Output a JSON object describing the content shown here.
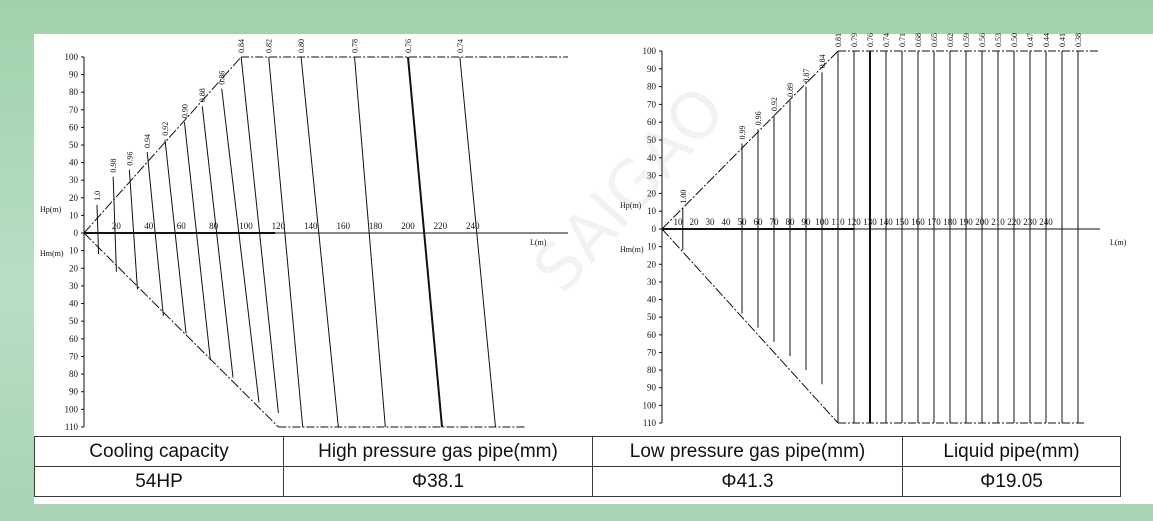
{
  "chart_data": [
    {
      "type": "line",
      "left_axis_labels": [
        "Hp(m)",
        "Hm(m)"
      ],
      "xlabel": "L(m)",
      "hp_ticks": [
        0,
        10,
        20,
        30,
        40,
        50,
        60,
        70,
        80,
        90,
        100
      ],
      "hm_ticks": [
        10,
        20,
        30,
        40,
        50,
        60,
        70,
        80,
        90,
        100,
        110
      ],
      "x_ticks": [
        20,
        40,
        60,
        80,
        100,
        120,
        140,
        160,
        180,
        200,
        220,
        240
      ],
      "x_range": [
        0,
        272
      ],
      "series": [
        {
          "label": "1.0",
          "top_L": 8,
          "top_Hp": 16,
          "bottom_L": 9,
          "bottom_Hm": 12
        },
        {
          "label": "0.98",
          "top_L": 18,
          "top_Hp": 32,
          "bottom_L": 20,
          "bottom_Hm": 22
        },
        {
          "label": "0.96",
          "top_L": 28,
          "top_Hp": 36,
          "bottom_L": 33,
          "bottom_Hm": 32
        },
        {
          "label": "0.94",
          "top_L": 39,
          "top_Hp": 46,
          "bottom_L": 49,
          "bottom_Hm": 47
        },
        {
          "label": "0.92",
          "top_L": 50,
          "top_Hp": 53,
          "bottom_L": 63,
          "bottom_Hm": 57
        },
        {
          "label": "0.90",
          "top_L": 62,
          "top_Hp": 63,
          "bottom_L": 78,
          "bottom_Hm": 72
        },
        {
          "label": "0.88",
          "top_L": 73,
          "top_Hp": 72,
          "bottom_L": 92,
          "bottom_Hm": 82
        },
        {
          "label": "0.86",
          "top_L": 85,
          "top_Hp": 82,
          "bottom_L": 108,
          "bottom_Hm": 96
        },
        {
          "label": "0.84",
          "top_L": 97,
          "top_Hp": 100,
          "bottom_L": 120,
          "bottom_Hm": 102
        },
        {
          "label": "0.82",
          "top_L": 114,
          "top_Hp": 100,
          "bottom_L": 135,
          "bottom_Hm": 110
        },
        {
          "label": "0.80",
          "top_L": 134,
          "top_Hp": 100,
          "bottom_L": 157,
          "bottom_Hm": 110
        },
        {
          "label": "0.78",
          "top_L": 167,
          "top_Hp": 100,
          "bottom_L": 186,
          "bottom_Hm": 110
        },
        {
          "label": "0.76",
          "top_L": 200,
          "top_Hp": 100,
          "bottom_L": 221,
          "bottom_Hm": 110
        },
        {
          "label": "0.74",
          "top_L": 232,
          "top_Hp": 100,
          "bottom_L": 254,
          "bottom_Hm": 110
        }
      ]
    },
    {
      "type": "line",
      "left_axis_labels": [
        "Hp(m)",
        "Hm(m)"
      ],
      "xlabel": "L(m)",
      "hp_ticks": [
        0,
        10,
        20,
        30,
        40,
        50,
        60,
        70,
        80,
        90,
        100
      ],
      "hm_ticks": [
        10,
        20,
        30,
        40,
        50,
        60,
        70,
        80,
        90,
        100,
        110
      ],
      "x_ticks": [
        10,
        20,
        30,
        40,
        50,
        60,
        70,
        80,
        90,
        100,
        110,
        120,
        130,
        140,
        150,
        160,
        170,
        180,
        190,
        200,
        210,
        220,
        230,
        240
      ],
      "x_range": [
        0,
        262
      ],
      "series": [
        {
          "label": "1.00",
          "L": 13,
          "top_Hp": 12,
          "bottom_Hm": 12
        },
        {
          "label": "0.99",
          "L": 50,
          "top_Hp": 48,
          "bottom_Hm": 48
        },
        {
          "label": "0.96",
          "L": 60,
          "top_Hp": 56,
          "bottom_Hm": 56
        },
        {
          "label": "0.92",
          "L": 70,
          "top_Hp": 64,
          "bottom_Hm": 64
        },
        {
          "label": "0.89",
          "L": 80,
          "top_Hp": 72,
          "bottom_Hm": 72
        },
        {
          "label": "0.87",
          "L": 90,
          "top_Hp": 80,
          "bottom_Hm": 80
        },
        {
          "label": "0.84",
          "L": 100,
          "top_Hp": 88,
          "bottom_Hm": 88
        },
        {
          "label": "0.81",
          "L": 110,
          "top_Hp": 100,
          "bottom_Hm": 110
        },
        {
          "label": "0.79",
          "L": 120,
          "top_Hp": 100,
          "bottom_Hm": 110
        },
        {
          "label": "0.76",
          "L": 130,
          "top_Hp": 100,
          "bottom_Hm": 110
        },
        {
          "label": "0.74",
          "L": 140,
          "top_Hp": 100,
          "bottom_Hm": 110
        },
        {
          "label": "0.71",
          "L": 150,
          "top_Hp": 100,
          "bottom_Hm": 110
        },
        {
          "label": "0.68",
          "L": 160,
          "top_Hp": 100,
          "bottom_Hm": 110
        },
        {
          "label": "0.65",
          "L": 170,
          "top_Hp": 100,
          "bottom_Hm": 110
        },
        {
          "label": "0.62",
          "L": 180,
          "top_Hp": 100,
          "bottom_Hm": 110
        },
        {
          "label": "0.59",
          "L": 190,
          "top_Hp": 100,
          "bottom_Hm": 110
        },
        {
          "label": "0.56",
          "L": 200,
          "top_Hp": 100,
          "bottom_Hm": 110
        },
        {
          "label": "0.53",
          "L": 210,
          "top_Hp": 100,
          "bottom_Hm": 110
        },
        {
          "label": "0.50",
          "L": 220,
          "top_Hp": 100,
          "bottom_Hm": 110
        },
        {
          "label": "0.47",
          "L": 230,
          "top_Hp": 100,
          "bottom_Hm": 110
        },
        {
          "label": "0.44",
          "L": 240,
          "top_Hp": 100,
          "bottom_Hm": 110
        },
        {
          "label": "0.41",
          "L": 250,
          "top_Hp": 100,
          "bottom_Hm": 110
        },
        {
          "label": "0.38",
          "L": 260,
          "top_Hp": 100,
          "bottom_Hm": 110
        }
      ]
    }
  ],
  "table": {
    "headers": [
      "Cooling capacity",
      "High pressure gas pipe(mm)",
      "Low pressure gas pipe(mm)",
      "Liquid pipe(mm)"
    ],
    "values": [
      "54HP",
      "Φ38.1",
      "Φ41.3",
      "Φ19.05"
    ]
  },
  "watermark_text": "SAIGAO",
  "colors": {
    "background": "#a7d4b3",
    "panel": "#ffffff",
    "line": "#111111"
  }
}
